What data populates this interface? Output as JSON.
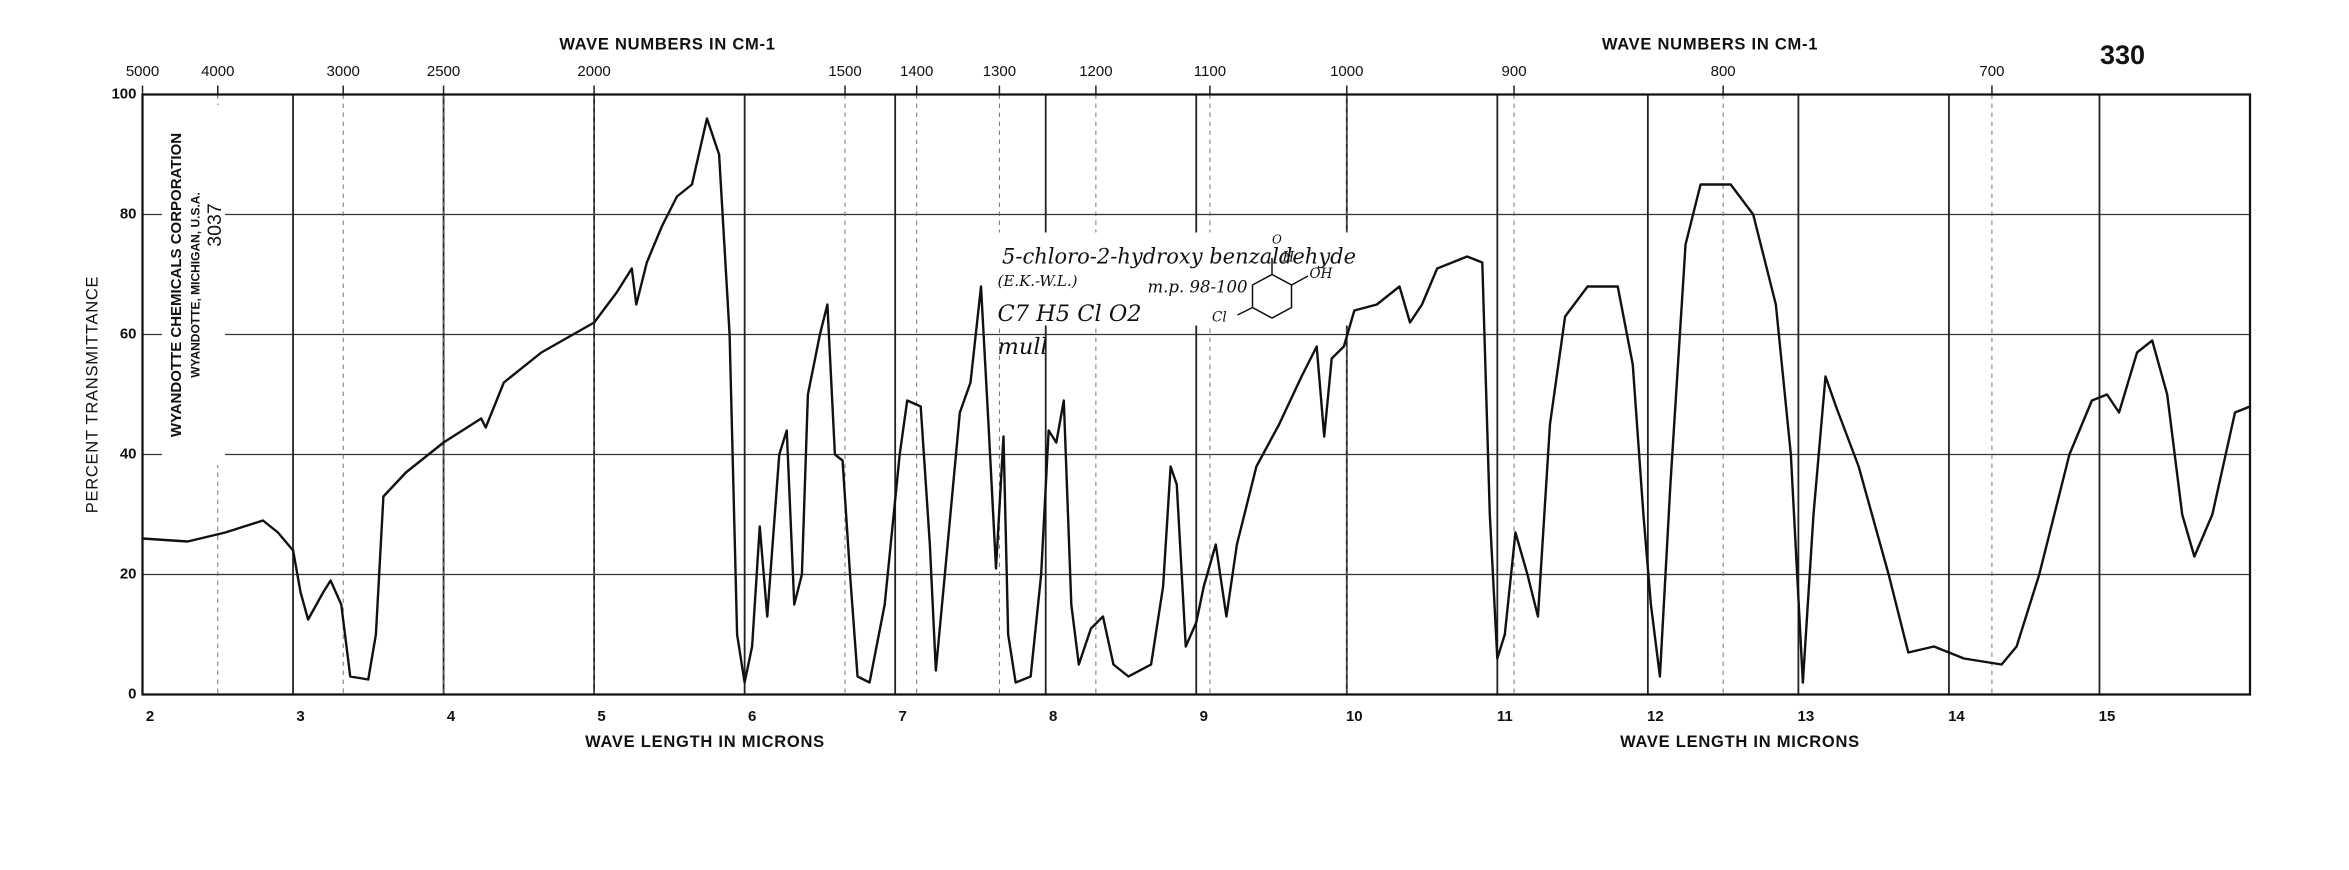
{
  "chart_data": {
    "type": "line",
    "ylabel": "PERCENT TRANSMITTANCE",
    "xlabel": "WAVE LENGTH IN MICRONS",
    "xlabel_right": "WAVE LENGTH IN MICRONS",
    "top_label": "WAVE NUMBERS IN CM-1",
    "top_label_right": "WAVE NUMBERS IN CM-1",
    "spectrum_number": "330",
    "company": "WYANDOTTE CHEMICALS CORPORATION",
    "company_location": "WYANDOTTE, MICHIGAN, U.S.A.",
    "catalog_number": "3037",
    "annotations": [
      "5-chloro-2-hydroxy benzaldehyde",
      "(E.K.-W.L.)",
      "m.p. 98-100",
      "C7 H5 Cl O2",
      "mull"
    ],
    "structure_labels": [
      "O",
      "H",
      "OH",
      "Cl"
    ],
    "xlim": [
      2,
      16
    ],
    "ylim": [
      0,
      100
    ],
    "xticks": [
      2,
      3,
      4,
      5,
      6,
      7,
      8,
      9,
      10,
      11,
      12,
      13,
      14,
      15
    ],
    "yticks": [
      0,
      20,
      40,
      60,
      80,
      100
    ],
    "top_ticks": [
      5000,
      4000,
      3000,
      2500,
      2000,
      1500,
      1400,
      1300,
      1200,
      1100,
      1000,
      900,
      800,
      700
    ],
    "grid": true,
    "series": [
      {
        "name": "5-chloro-2-hydroxy benzaldehyde",
        "color": "#111111",
        "x": [
          2.0,
          2.3,
          2.55,
          2.8,
          2.9,
          3.0,
          3.05,
          3.1,
          3.2,
          3.25,
          3.32,
          3.38,
          3.5,
          3.55,
          3.6,
          3.75,
          4.0,
          4.25,
          4.28,
          4.4,
          4.65,
          5.0,
          5.15,
          5.25,
          5.28,
          5.35,
          5.45,
          5.55,
          5.65,
          5.75,
          5.83,
          5.9,
          5.95,
          6.0,
          6.05,
          6.1,
          6.15,
          6.23,
          6.28,
          6.33,
          6.38,
          6.42,
          6.5,
          6.55,
          6.6,
          6.65,
          6.7,
          6.75,
          6.83,
          6.93,
          7.03,
          7.08,
          7.17,
          7.23,
          7.27,
          7.33,
          7.43,
          7.5,
          7.57,
          7.62,
          7.67,
          7.72,
          7.75,
          7.8,
          7.9,
          7.97,
          8.02,
          8.07,
          8.12,
          8.17,
          8.22,
          8.3,
          8.38,
          8.45,
          8.55,
          8.7,
          8.78,
          8.83,
          8.87,
          8.93,
          9.0,
          9.05,
          9.13,
          9.2,
          9.27,
          9.4,
          9.55,
          9.7,
          9.8,
          9.85,
          9.9,
          9.98,
          10.05,
          10.2,
          10.35,
          10.42,
          10.5,
          10.6,
          10.8,
          10.9,
          10.95,
          11.0,
          11.05,
          11.12,
          11.2,
          11.27,
          11.35,
          11.45,
          11.6,
          11.8,
          11.9,
          11.97,
          12.02,
          12.08,
          12.15,
          12.25,
          12.35,
          12.55,
          12.7,
          12.85,
          12.95,
          13.03,
          13.1,
          13.18,
          13.25,
          13.4,
          13.6,
          13.73,
          13.9,
          14.1,
          14.35,
          14.45,
          14.6,
          14.8,
          14.95,
          15.05,
          15.13,
          15.25,
          15.35,
          15.45,
          15.55,
          15.63,
          15.75,
          15.9,
          16.0
        ],
        "values": [
          26,
          25.5,
          27,
          29,
          27,
          24,
          17,
          12.5,
          17,
          19,
          15,
          3,
          2.5,
          10,
          33,
          37,
          42,
          46,
          44.5,
          52,
          57,
          62,
          67,
          71,
          65,
          72,
          78,
          83,
          85,
          96,
          90,
          60,
          10,
          2,
          8,
          28,
          13,
          40,
          44,
          15,
          20,
          50,
          60,
          65,
          40,
          39,
          20,
          3,
          2,
          15,
          40,
          49,
          48,
          25,
          4,
          20,
          47,
          52,
          68,
          45,
          21,
          43,
          10,
          2,
          3,
          20,
          44,
          42,
          49,
          15,
          5,
          11,
          13,
          5,
          3,
          5,
          18,
          38,
          35,
          8,
          12,
          18,
          25,
          13,
          25,
          38,
          45,
          53,
          58,
          43,
          56,
          58,
          64,
          65,
          68,
          62,
          65,
          71,
          73,
          72,
          30,
          6,
          10,
          27,
          20,
          13,
          45,
          63,
          68,
          68,
          55,
          30,
          15,
          3,
          35,
          75,
          85,
          85,
          80,
          65,
          40,
          2,
          30,
          53,
          48,
          38,
          20,
          7,
          8,
          6,
          5,
          8,
          20,
          40,
          49,
          50,
          47,
          57,
          59,
          50,
          30,
          23,
          30,
          47,
          48
        ]
      }
    ]
  }
}
